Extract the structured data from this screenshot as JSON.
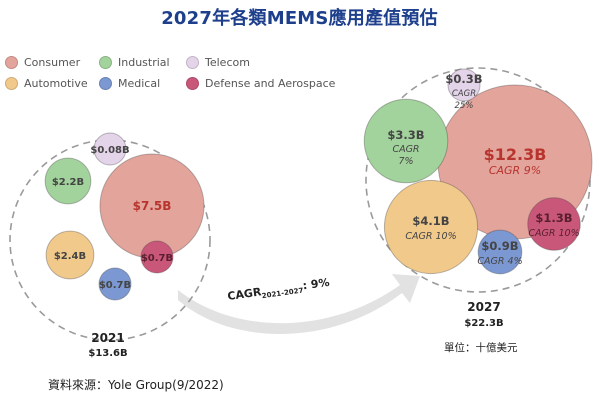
{
  "title": "2027年各類MEMS應用產值預估",
  "source": "資料來源：Yole Group(9/2022)",
  "unit": "單位：十億美元",
  "legend": [
    {
      "label": "Consumer",
      "color": "#e3a49b"
    },
    {
      "label": "Industrial",
      "color": "#a3d39c"
    },
    {
      "label": "Telecom",
      "color": "#e4d4ea"
    },
    {
      "label": "Automotive",
      "color": "#f1c98b"
    },
    {
      "label": "Medical",
      "color": "#7c98d2"
    },
    {
      "label": "Defense and Aerospace",
      "color": "#c9577a"
    }
  ],
  "cagr_label": "CAGR",
  "cagr_sub": "2021-2027",
  "cagr_value": ": 9%",
  "chart_data": {
    "type": "bubble",
    "unit": "單位：十億美元",
    "groups": [
      {
        "year": "2021",
        "total_label": "$13.6B",
        "total": 13.6,
        "items": [
          {
            "category": "Consumer",
            "label": "$7.5B",
            "value": 7.5
          },
          {
            "category": "Industrial",
            "label": "$2.2B",
            "value": 2.2
          },
          {
            "category": "Telecom",
            "label": "$0.08B",
            "value": 0.08
          },
          {
            "category": "Automotive",
            "label": "$2.4B",
            "value": 2.4
          },
          {
            "category": "Medical",
            "label": "$0.7B",
            "value": 0.7
          },
          {
            "category": "Defense and Aerospace",
            "label": "$0.7B",
            "value": 0.7
          }
        ]
      },
      {
        "year": "2027",
        "total_label": "$22.3B",
        "total": 22.3,
        "items": [
          {
            "category": "Consumer",
            "label": "$12.3B",
            "value": 12.3,
            "cagr": "CAGR 9%"
          },
          {
            "category": "Industrial",
            "label": "$3.3B",
            "value": 3.3,
            "cagr": "CAGR 7%"
          },
          {
            "category": "Telecom",
            "label": "$0.3B",
            "value": 0.3,
            "cagr": "CAGR 25%"
          },
          {
            "category": "Automotive",
            "label": "$4.1B",
            "value": 4.1,
            "cagr": "CAGR 10%"
          },
          {
            "category": "Medical",
            "label": "$0.9B",
            "value": 0.9,
            "cagr": "CAGR 4%"
          },
          {
            "category": "Defense and Aerospace",
            "label": "$1.3B",
            "value": 1.3,
            "cagr": "CAGR 10%"
          }
        ]
      }
    ]
  }
}
